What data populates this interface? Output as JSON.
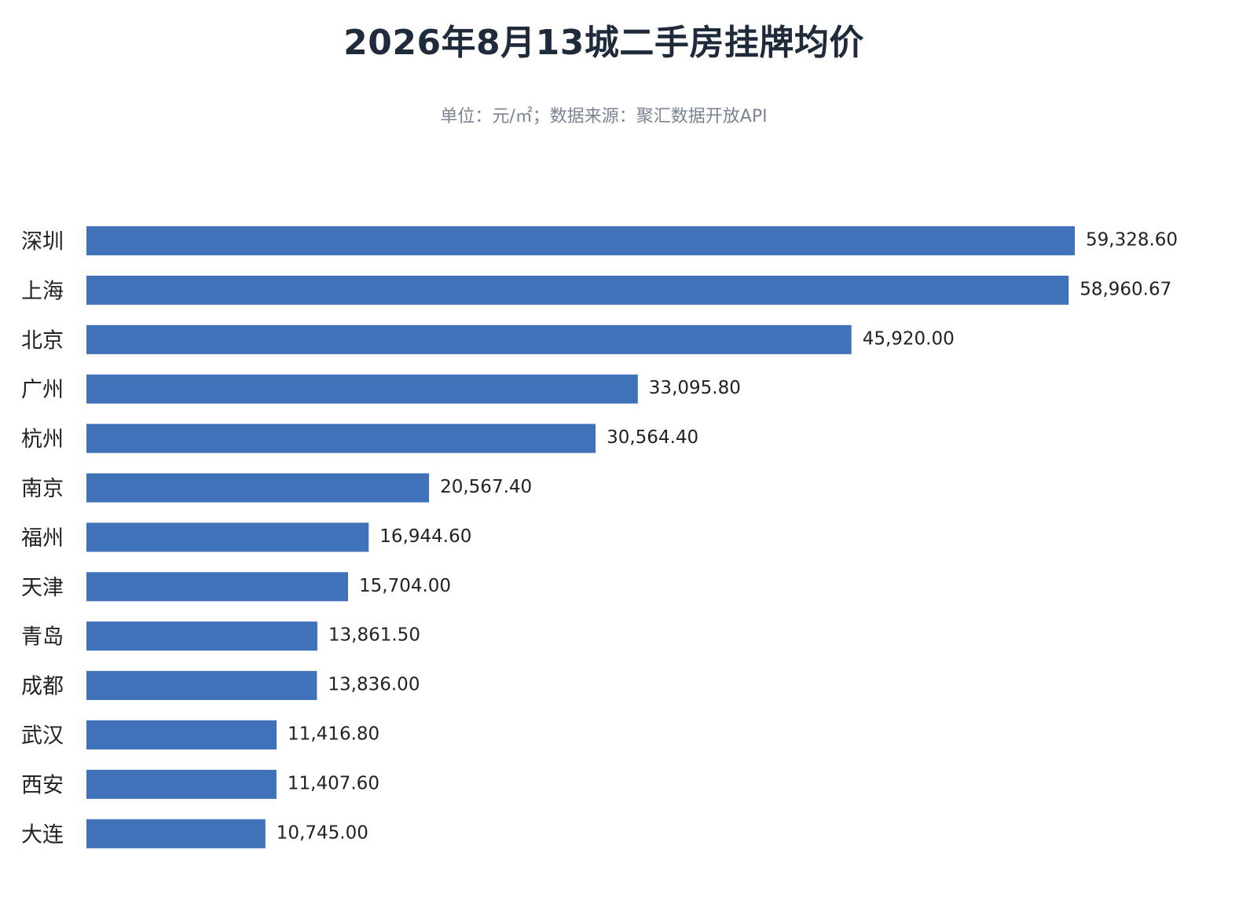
{
  "chart_data": {
    "type": "bar",
    "orientation": "horizontal",
    "title": "2026年8月13城二手房挂牌均价",
    "subtitle": "单位：元/㎡；数据来源：聚汇数据开放API",
    "categories": [
      "深圳",
      "上海",
      "北京",
      "广州",
      "杭州",
      "南京",
      "福州",
      "天津",
      "青岛",
      "成都",
      "武汉",
      "西安",
      "大连"
    ],
    "values": [
      59328.6,
      58960.67,
      45920.0,
      33095.8,
      30564.4,
      20567.4,
      16944.6,
      15704.0,
      13861.5,
      13836.0,
      11416.8,
      11407.6,
      10745.0
    ],
    "value_labels": [
      "59,328.60",
      "58,960.67",
      "45,920.00",
      "33,095.80",
      "30,564.40",
      "20,567.40",
      "16,944.60",
      "15,704.00",
      "13,861.50",
      "13,836.00",
      "11,416.80",
      "11,407.60",
      "10,745.00"
    ],
    "xlim": [
      0,
      59328.6
    ],
    "grid": false,
    "bar_color": "#3f72b8"
  }
}
